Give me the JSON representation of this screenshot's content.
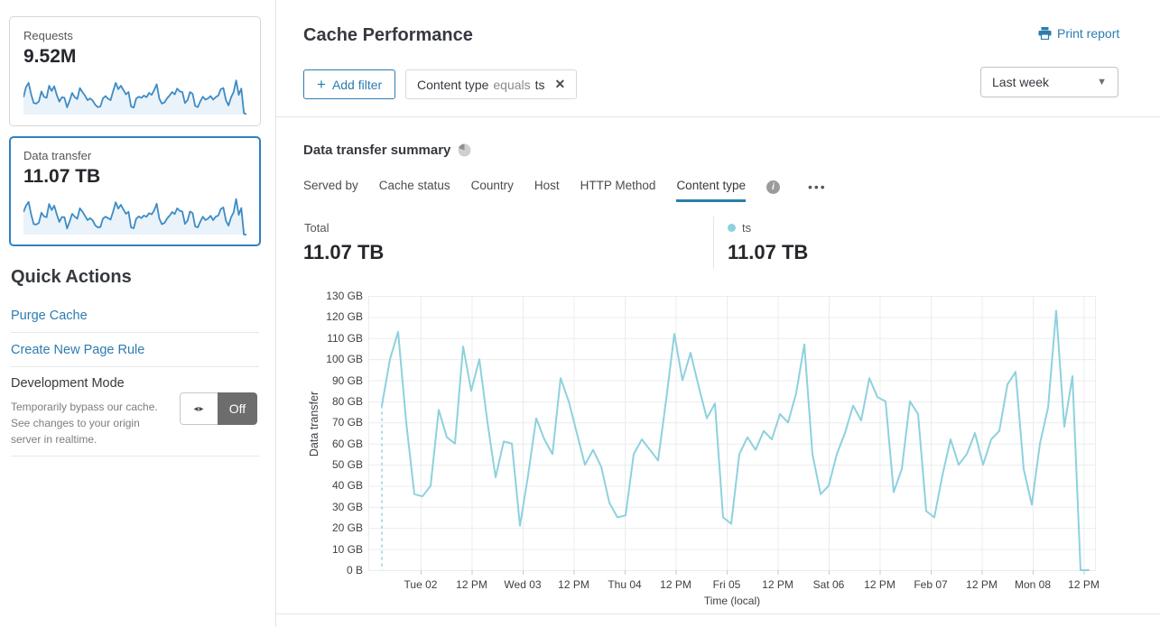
{
  "page": {
    "title": "Cache Performance",
    "print_label": "Print report"
  },
  "filters": {
    "add_label": "Add filter",
    "chip": {
      "field": "Content type",
      "operator": "equals",
      "value": "ts"
    },
    "time_range": "Last week"
  },
  "sidebar": {
    "cards": [
      {
        "label": "Requests",
        "value": "9.52M",
        "sparkline": [
          60,
          95,
          110,
          70,
          40,
          38,
          45,
          80,
          62,
          58,
          100,
          82,
          98,
          68,
          45,
          60,
          58,
          25,
          48,
          75,
          60,
          54,
          92,
          78,
          66,
          50,
          56,
          48,
          34,
          26,
          28,
          56,
          64,
          55,
          50,
          82,
          110,
          88,
          100,
          85,
          70,
          78,
          28,
          24,
          56,
          62,
          58,
          66,
          60,
          75,
          68,
          85,
          105,
          55,
          38,
          42,
          56,
          66,
          78,
          70,
          90,
          80,
          78,
          40,
          50,
          78,
          72,
          30,
          26,
          46,
          62,
          52,
          56,
          64,
          52,
          60,
          66,
          88,
          92,
          50,
          32,
          60,
          78,
          118,
          68,
          90,
          5,
          2
        ]
      },
      {
        "label": "Data transfer",
        "value": "11.07 TB",
        "sparkline": [
          78,
          100,
          113,
          70,
          36,
          35,
          40,
          76,
          63,
          60,
          106,
          85,
          100,
          70,
          44,
          61,
          60,
          21,
          45,
          72,
          62,
          55,
          91,
          80,
          65,
          50,
          57,
          49,
          32,
          25,
          26,
          55,
          62,
          57,
          52,
          81,
          112,
          90,
          103,
          87,
          72,
          79,
          25,
          22,
          55,
          63,
          57,
          66,
          62,
          74,
          70,
          84,
          107,
          55,
          36,
          40,
          55,
          65,
          78,
          71,
          91,
          82,
          80,
          37,
          48,
          80,
          74,
          28,
          25,
          45,
          62,
          50,
          55,
          65,
          50,
          62,
          66,
          88,
          94,
          48,
          31,
          60,
          77,
          123,
          68,
          92,
          0,
          0
        ]
      }
    ],
    "quick_actions": {
      "title": "Quick Actions",
      "links": [
        "Purge Cache",
        "Create New Page Rule"
      ]
    },
    "development_mode": {
      "title": "Development Mode",
      "description": "Temporarily bypass our cache. See changes to your origin server in realtime.",
      "toggle_icon": "◂▸",
      "toggle_label": "Off"
    }
  },
  "summary": {
    "title": "Data transfer summary",
    "tabs": [
      "Served by",
      "Cache status",
      "Country",
      "Host",
      "HTTP Method",
      "Content type"
    ],
    "active_tab": "Content type",
    "dots_label": "•••",
    "info_label": "i",
    "total_label": "Total",
    "total_value": "11.07 TB",
    "series_label": "ts",
    "series_value": "11.07 TB"
  },
  "chart_data": {
    "type": "line",
    "title": "Data transfer summary",
    "xlabel": "Time (local)",
    "ylabel": "Data transfer",
    "ylim": [
      0,
      130
    ],
    "grid": true,
    "y_ticks": [
      "0 B",
      "10 GB",
      "20 GB",
      "30 GB",
      "40 GB",
      "50 GB",
      "60 GB",
      "70 GB",
      "80 GB",
      "90 GB",
      "100 GB",
      "110 GB",
      "120 GB",
      "130 GB"
    ],
    "x_ticks": [
      "Tue 02",
      "12 PM",
      "Wed 03",
      "12 PM",
      "Thu 04",
      "12 PM",
      "Fri 05",
      "12 PM",
      "Sat 06",
      "12 PM",
      "Feb 07",
      "12 PM",
      "Mon 08",
      "12 PM"
    ],
    "series": [
      {
        "name": "ts",
        "color": "#8ed1de",
        "total": "11.07 TB",
        "unit": "GB",
        "values": [
          78,
          100,
          113,
          70,
          36,
          35,
          40,
          76,
          63,
          60,
          106,
          85,
          100,
          70,
          44,
          61,
          60,
          21,
          45,
          72,
          62,
          55,
          91,
          80,
          65,
          50,
          57,
          49,
          32,
          25,
          26,
          55,
          62,
          57,
          52,
          81,
          112,
          90,
          103,
          87,
          72,
          79,
          25,
          22,
          55,
          63,
          57,
          66,
          62,
          74,
          70,
          84,
          107,
          55,
          36,
          40,
          55,
          65,
          78,
          71,
          91,
          82,
          80,
          37,
          48,
          80,
          74,
          28,
          25,
          45,
          62,
          50,
          55,
          65,
          50,
          62,
          66,
          88,
          94,
          48,
          31,
          60,
          77,
          123,
          68,
          92,
          0,
          0
        ]
      }
    ]
  },
  "colors": {
    "link_blue": "#2c7cb0",
    "chart_line": "#8ed1de",
    "sparkline": "#3e8bc4",
    "sparkline_fill": "#eaf3fa",
    "selected_card_border": "#3081c1",
    "grid": "#ececec",
    "tab_underline": "#2a7ea8"
  }
}
